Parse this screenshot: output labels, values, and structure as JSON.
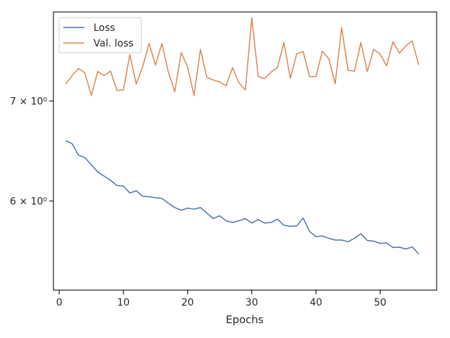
{
  "chart_data": {
    "type": "line",
    "xlabel": "Epochs",
    "ylabel": "",
    "yscale": "log",
    "xlim": [
      -0.9,
      58.8
    ],
    "ylim": [
      5.23,
      8.03
    ],
    "x_ticks": [
      0,
      10,
      20,
      30,
      40,
      50
    ],
    "x_tick_labels": [
      "0",
      "10",
      "20",
      "30",
      "40",
      "50"
    ],
    "y_ticks": [
      6,
      7
    ],
    "y_tick_labels": [
      "6 × 10⁰",
      "7 × 10⁰"
    ],
    "grid": false,
    "legend_position": "top-left",
    "x": [
      1,
      2,
      3,
      4,
      5,
      6,
      7,
      8,
      9,
      10,
      11,
      12,
      13,
      14,
      15,
      16,
      17,
      18,
      19,
      20,
      21,
      22,
      23,
      24,
      25,
      26,
      27,
      28,
      29,
      30,
      31,
      32,
      33,
      34,
      35,
      36,
      37,
      38,
      39,
      40,
      41,
      42,
      43,
      44,
      45,
      46,
      47,
      48,
      49,
      50,
      51,
      52,
      53,
      54,
      55,
      56
    ],
    "series": [
      {
        "name": "Loss",
        "color": "#4c72b0",
        "values": [
          6.585,
          6.555,
          6.44,
          6.415,
          6.345,
          6.275,
          6.235,
          6.195,
          6.145,
          6.14,
          6.075,
          6.095,
          6.045,
          6.04,
          6.03,
          6.025,
          5.98,
          5.94,
          5.915,
          5.935,
          5.925,
          5.94,
          5.89,
          5.84,
          5.865,
          5.82,
          5.805,
          5.82,
          5.84,
          5.8,
          5.83,
          5.8,
          5.805,
          5.835,
          5.78,
          5.77,
          5.775,
          5.845,
          5.725,
          5.68,
          5.685,
          5.665,
          5.65,
          5.65,
          5.635,
          5.665,
          5.705,
          5.645,
          5.64,
          5.62,
          5.625,
          5.585,
          5.588,
          5.572,
          5.59,
          5.53
        ]
      },
      {
        "name": "Val. loss",
        "color": "#dd8452",
        "values": [
          7.185,
          7.28,
          7.36,
          7.31,
          7.06,
          7.325,
          7.28,
          7.33,
          7.115,
          7.12,
          7.52,
          7.185,
          7.38,
          7.65,
          7.4,
          7.65,
          7.32,
          7.1,
          7.54,
          7.38,
          7.06,
          7.58,
          7.26,
          7.23,
          7.21,
          7.165,
          7.37,
          7.2,
          7.12,
          7.96,
          7.27,
          7.245,
          7.32,
          7.37,
          7.66,
          7.25,
          7.53,
          7.555,
          7.27,
          7.27,
          7.56,
          7.47,
          7.19,
          7.84,
          7.34,
          7.33,
          7.66,
          7.325,
          7.58,
          7.525,
          7.39,
          7.67,
          7.535,
          7.62,
          7.68,
          7.4
        ]
      }
    ]
  }
}
